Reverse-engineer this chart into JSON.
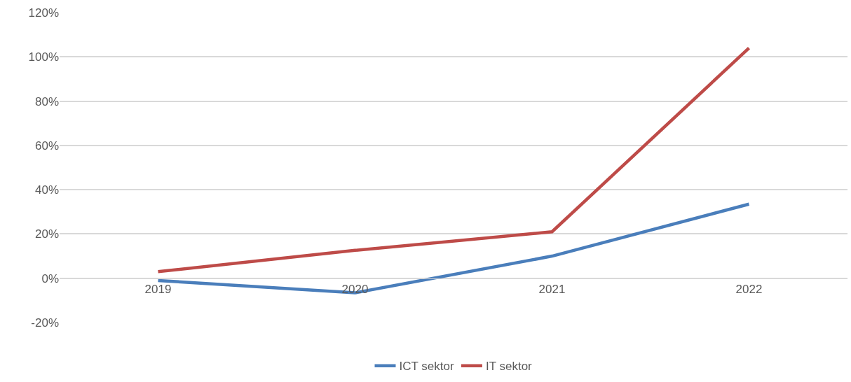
{
  "chart_data": {
    "type": "line",
    "categories": [
      "2019",
      "2020",
      "2021",
      "2022"
    ],
    "series": [
      {
        "name": "ICT sektor",
        "color": "#4a7ebb",
        "values": [
          -1,
          -6.6,
          10,
          33.5
        ]
      },
      {
        "name": "IT sektor",
        "color": "#be4b48",
        "values": [
          3,
          12.6,
          21,
          104
        ]
      }
    ],
    "ylim": [
      -20,
      120
    ],
    "yticks": [
      {
        "value": -20,
        "label": "-20%"
      },
      {
        "value": 0,
        "label": "0%"
      },
      {
        "value": 20,
        "label": "20%"
      },
      {
        "value": 40,
        "label": "40%"
      },
      {
        "value": 60,
        "label": "60%"
      },
      {
        "value": 80,
        "label": "80%"
      },
      {
        "value": 100,
        "label": "100%"
      },
      {
        "value": 120,
        "label": "120%"
      }
    ],
    "grid": "y",
    "legend": "bottom",
    "marker": "none",
    "line_style": "solid"
  }
}
